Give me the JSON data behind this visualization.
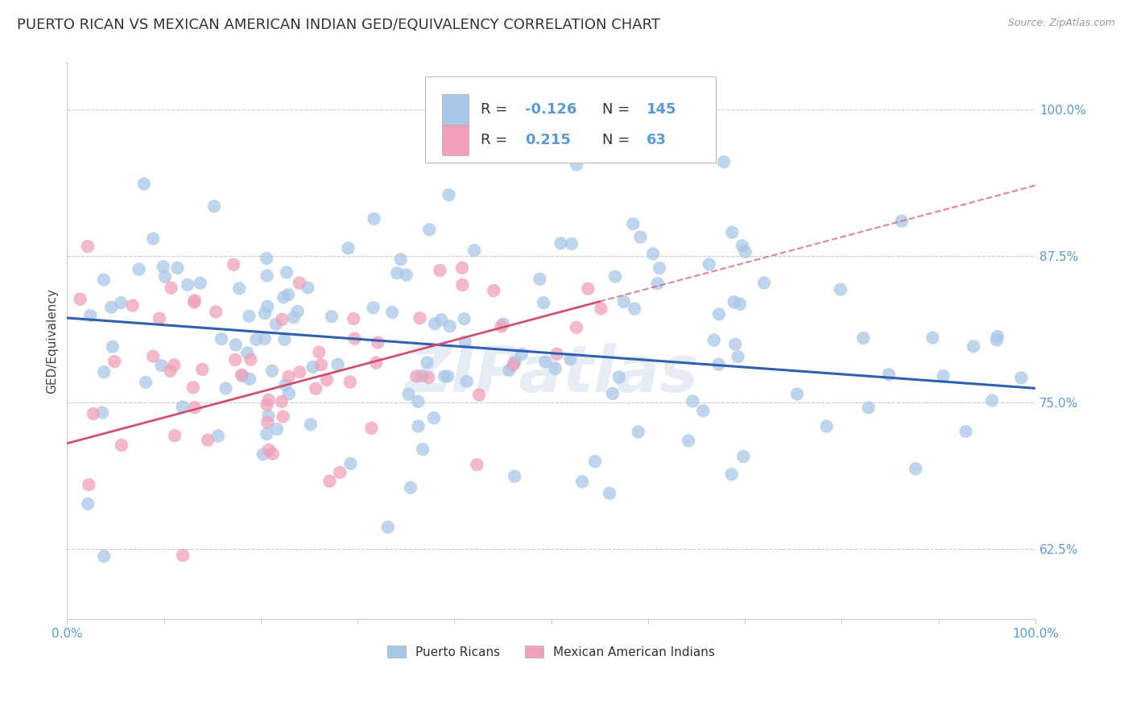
{
  "title": "PUERTO RICAN VS MEXICAN AMERICAN INDIAN GED/EQUIVALENCY CORRELATION CHART",
  "source": "Source: ZipAtlas.com",
  "ylabel": "GED/Equivalency",
  "xlim": [
    0.0,
    1.0
  ],
  "ylim": [
    0.565,
    1.04
  ],
  "yticks": [
    0.625,
    0.75,
    0.875,
    1.0
  ],
  "ytick_labels": [
    "62.5%",
    "75.0%",
    "87.5%",
    "100.0%"
  ],
  "xticks": [
    0.0,
    0.1,
    0.2,
    0.3,
    0.4,
    0.5,
    0.6,
    0.7,
    0.8,
    0.9,
    1.0
  ],
  "xtick_labels": [
    "0.0%",
    "",
    "",
    "",
    "",
    "",
    "",
    "",
    "",
    "",
    "100.0%"
  ],
  "blue_color": "#a8c8e8",
  "pink_color": "#f0a0b8",
  "blue_line_color": "#3060b0",
  "pink_line_color": "#d05070",
  "blue_R": -0.126,
  "blue_N": 145,
  "pink_R": 0.215,
  "pink_N": 63,
  "title_fontsize": 13,
  "axis_label_fontsize": 11,
  "tick_fontsize": 11,
  "watermark": "ZIPatlas",
  "background_color": "#ffffff",
  "grid_color": "#cccccc",
  "label_color": "#5b9bd5",
  "blue_line_y0": 0.822,
  "blue_line_y1": 0.762,
  "pink_line_y0": 0.715,
  "pink_line_y1": 0.935
}
